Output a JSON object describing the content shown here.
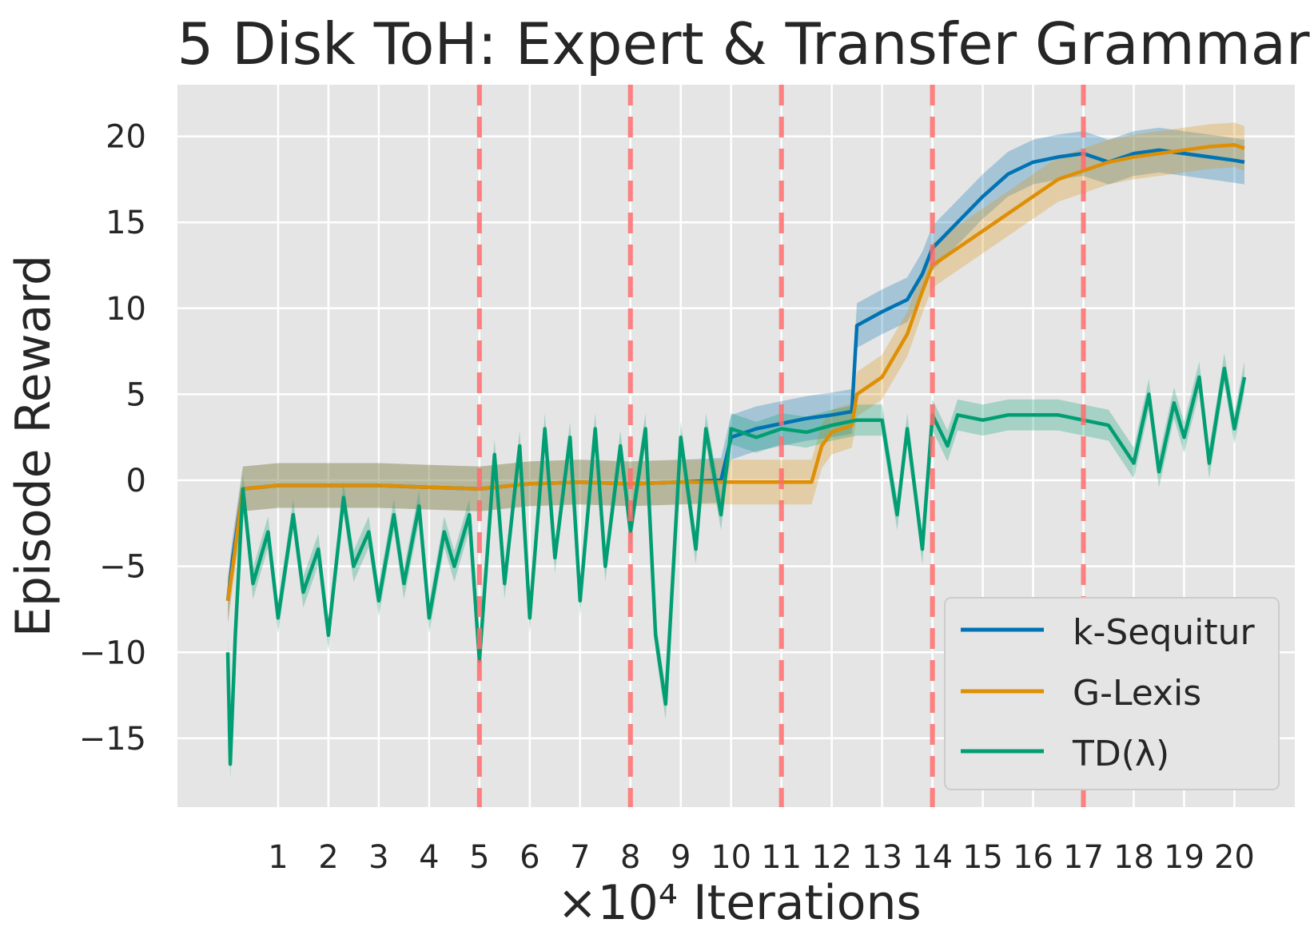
{
  "chart_data": {
    "type": "line",
    "title": "5 Disk ToH: Expert & Transfer Grammar",
    "xlabel": "×10⁴ Iterations",
    "ylabel": "Episode Reward",
    "xlim": [
      -1.0,
      21.2
    ],
    "ylim": [
      -19.0,
      23.0
    ],
    "xticks": [
      1,
      2,
      3,
      4,
      5,
      6,
      7,
      8,
      9,
      10,
      11,
      12,
      13,
      14,
      15,
      16,
      17,
      18,
      19,
      20
    ],
    "yticks": [
      -15,
      -10,
      -5,
      0,
      5,
      10,
      15,
      20
    ],
    "ytick_labels": [
      "−15",
      "−10",
      "−5",
      "0",
      "5",
      "10",
      "15",
      "20"
    ],
    "grid": true,
    "legend_position": "lower-right",
    "vlines": {
      "x": [
        5,
        8,
        11,
        14,
        17
      ],
      "color": "#ff6b6b",
      "style": "dashed"
    },
    "series": [
      {
        "name": "k-Sequitur",
        "color": "#0173b2",
        "x": [
          0.0,
          0.1,
          0.3,
          1.0,
          2.0,
          3.0,
          4.0,
          5.0,
          6.0,
          7.0,
          8.0,
          9.0,
          9.8,
          10.0,
          10.5,
          11.0,
          11.5,
          12.0,
          12.4,
          12.5,
          13.0,
          13.5,
          13.8,
          14.0,
          14.5,
          15.0,
          15.5,
          16.0,
          16.5,
          17.0,
          17.5,
          18.0,
          18.5,
          19.0,
          19.5,
          20.0,
          20.2
        ],
        "y": [
          -7.0,
          -4.5,
          -0.5,
          -0.3,
          -0.3,
          -0.3,
          -0.4,
          -0.5,
          -0.2,
          -0.1,
          -0.2,
          -0.1,
          0.0,
          2.5,
          3.0,
          3.3,
          3.6,
          3.8,
          4.0,
          9.0,
          9.8,
          10.5,
          12.0,
          13.5,
          15.0,
          16.5,
          17.8,
          18.5,
          18.8,
          19.0,
          18.5,
          19.0,
          19.2,
          19.0,
          18.8,
          18.6,
          18.5
        ]
      },
      {
        "name": "G-Lexis",
        "color": "#de8f05",
        "x": [
          0.0,
          0.1,
          0.3,
          1.0,
          2.0,
          3.0,
          4.0,
          5.0,
          6.0,
          7.0,
          8.0,
          9.0,
          10.0,
          11.0,
          11.6,
          11.8,
          12.0,
          12.4,
          12.5,
          13.0,
          13.5,
          13.8,
          14.0,
          14.5,
          15.0,
          15.5,
          16.0,
          16.5,
          17.0,
          17.5,
          18.0,
          18.5,
          19.0,
          19.5,
          20.0,
          20.2
        ],
        "y": [
          -7.0,
          -5.0,
          -0.5,
          -0.3,
          -0.3,
          -0.3,
          -0.4,
          -0.5,
          -0.2,
          -0.1,
          -0.2,
          -0.1,
          -0.1,
          -0.1,
          -0.1,
          2.0,
          2.8,
          3.2,
          5.0,
          6.0,
          8.5,
          11.0,
          12.5,
          13.5,
          14.5,
          15.5,
          16.5,
          17.5,
          18.0,
          18.5,
          18.8,
          19.0,
          19.2,
          19.4,
          19.5,
          19.3
        ]
      },
      {
        "name": "TD(λ)",
        "color": "#029e73",
        "x": [
          0.0,
          0.05,
          0.15,
          0.3,
          0.5,
          0.8,
          1.0,
          1.3,
          1.5,
          1.8,
          2.0,
          2.3,
          2.5,
          2.8,
          3.0,
          3.3,
          3.5,
          3.8,
          4.0,
          4.3,
          4.5,
          4.8,
          5.0,
          5.3,
          5.5,
          5.8,
          6.0,
          6.3,
          6.5,
          6.8,
          7.0,
          7.3,
          7.5,
          7.8,
          8.0,
          8.3,
          8.5,
          8.7,
          9.0,
          9.3,
          9.5,
          9.8,
          10.0,
          10.5,
          11.0,
          11.5,
          12.0,
          12.5,
          13.0,
          13.3,
          13.5,
          13.8,
          14.0,
          14.3,
          14.5,
          15.0,
          15.5,
          16.0,
          16.5,
          17.0,
          17.5,
          18.0,
          18.3,
          18.5,
          18.8,
          19.0,
          19.3,
          19.5,
          19.8,
          20.0,
          20.2
        ],
        "y": [
          -10.0,
          -16.5,
          -9.0,
          -0.5,
          -6.0,
          -3.0,
          -8.0,
          -2.0,
          -6.5,
          -4.0,
          -9.0,
          -1.0,
          -5.0,
          -3.0,
          -7.0,
          -2.0,
          -6.0,
          -1.5,
          -8.0,
          -3.0,
          -5.0,
          -2.0,
          -10.5,
          1.5,
          -6.0,
          2.0,
          -8.0,
          3.0,
          -4.5,
          2.5,
          -7.0,
          3.0,
          -5.0,
          2.0,
          -3.0,
          3.0,
          -9.0,
          -13.0,
          2.5,
          -4.0,
          3.0,
          -2.0,
          3.0,
          2.5,
          3.0,
          2.8,
          3.2,
          3.5,
          3.5,
          -2.0,
          3.0,
          -4.0,
          3.8,
          2.0,
          3.8,
          3.5,
          3.8,
          3.8,
          3.8,
          3.5,
          3.2,
          1.0,
          5.0,
          0.5,
          4.5,
          2.5,
          6.0,
          1.0,
          6.5,
          3.0,
          6.0
        ]
      }
    ]
  }
}
